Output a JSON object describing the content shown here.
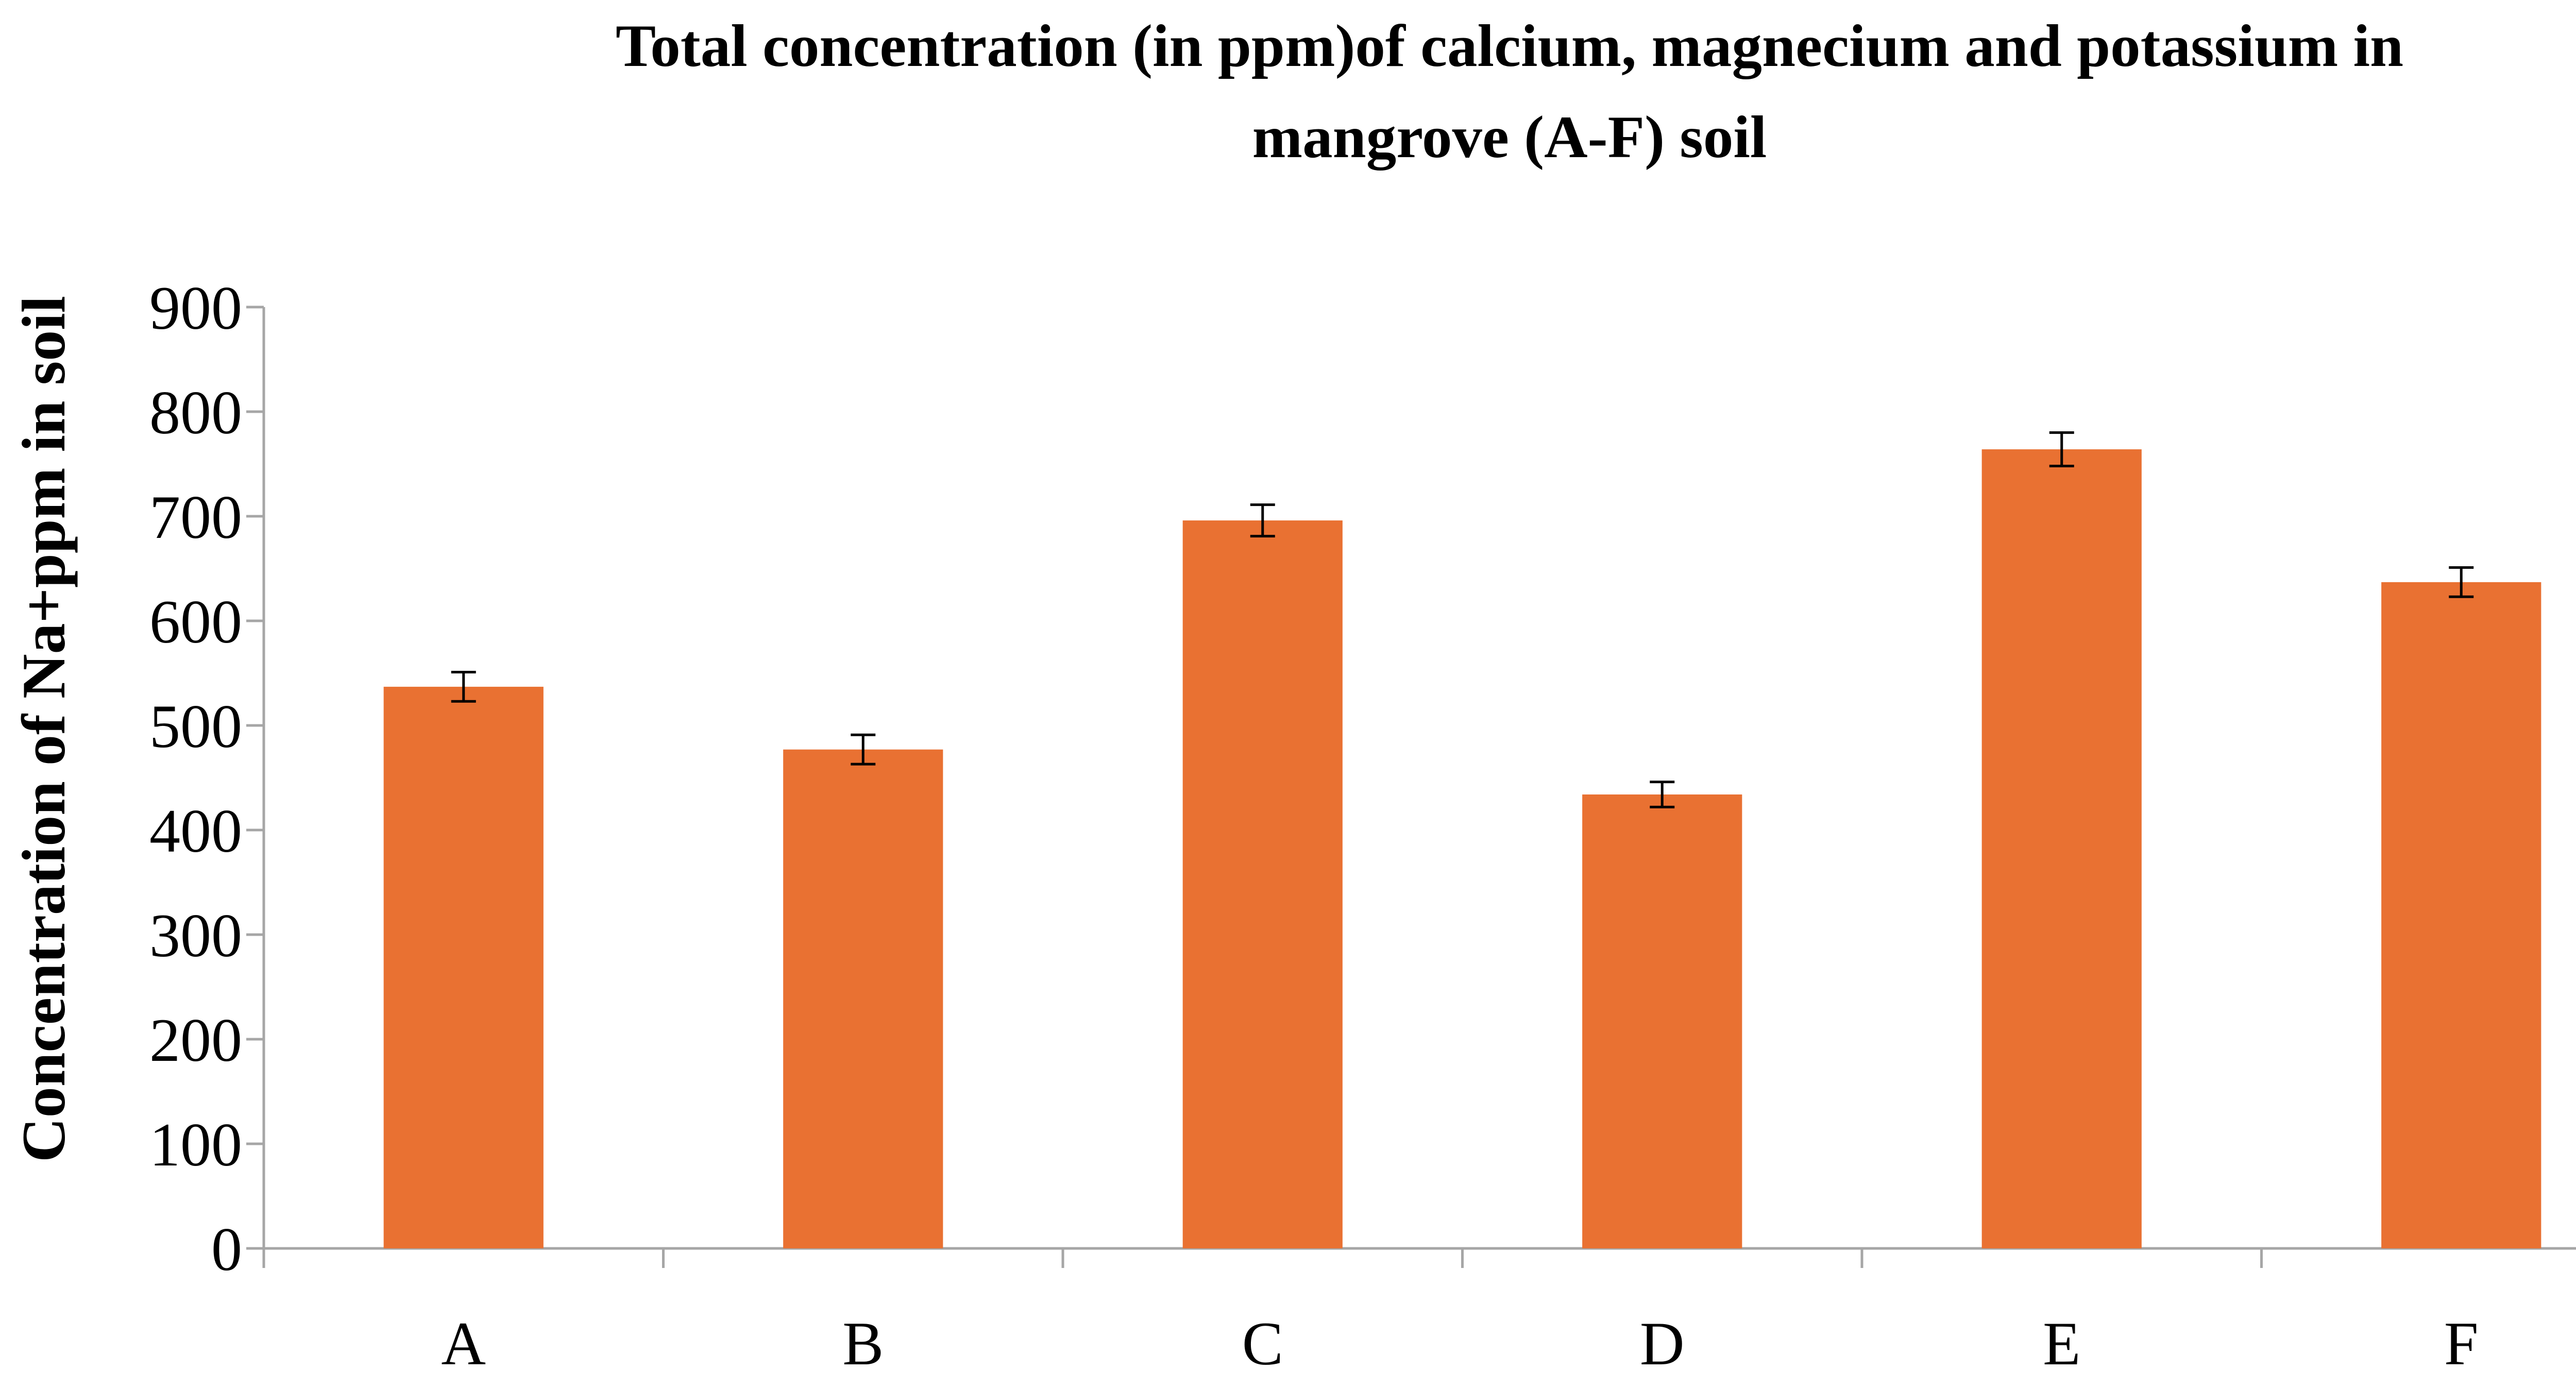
{
  "chart_data": {
    "type": "bar",
    "title_lines": [
      "Total concentration (in ppm)of calcium, magnecium and potassium in",
      "mangrove (A-F) soil"
    ],
    "ylabel": "Concentration of Na+ppm in soil",
    "xlabel": "",
    "categories": [
      "A",
      "B",
      "C",
      "D",
      "E",
      "F"
    ],
    "values": [
      537,
      477,
      696,
      434,
      764,
      637
    ],
    "error": [
      14,
      14,
      15,
      12,
      16,
      14
    ],
    "ylim": [
      0,
      900
    ],
    "yticks": [
      0,
      100,
      200,
      300,
      400,
      500,
      600,
      700,
      800,
      900
    ],
    "grid": false,
    "legend": "none",
    "bar_color": "#e97132",
    "axis_color": "#a6a6a6"
  }
}
